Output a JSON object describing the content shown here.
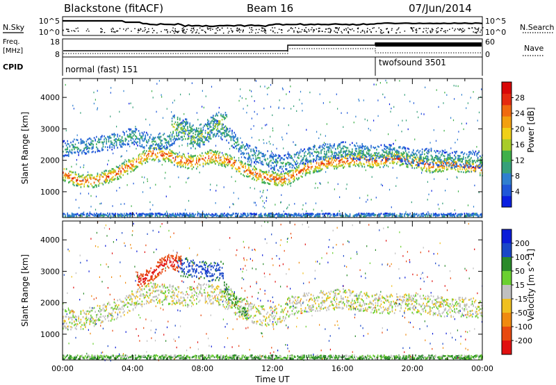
{
  "header": {
    "radar": "Blackstone (fitACF)",
    "beam": "Beam 16",
    "date": "07/Jun/2014"
  },
  "left_labels": {
    "nsky": "N.Sky",
    "freq": "Freq.",
    "freq_unit": "[MHz]",
    "cpid": "CPID"
  },
  "right_labels": {
    "nsearch": "N.Search",
    "nave": "Nave"
  },
  "nsky_ticks": [
    "10^5",
    "10^0"
  ],
  "nsearch_ticks": [
    "10^5",
    "10^0"
  ],
  "freq_ticks": [
    "18",
    "8"
  ],
  "nave_ticks": [
    "60",
    "0"
  ],
  "cpid_modes": [
    {
      "label": "normal (fast) 151",
      "start_hour": 0
    },
    {
      "label": "twofsound 3501",
      "start_hour": 18
    }
  ],
  "chart_data": [
    {
      "type": "heatmap",
      "name": "power",
      "ylabel": "Slant Range [km]",
      "xlabel": "",
      "xlim": [
        0,
        24
      ],
      "ylim": [
        180,
        4600
      ],
      "yticks": [
        1000,
        2000,
        3000,
        4000
      ],
      "colorbar": {
        "label": "Power [dB]",
        "ticks": [
          "4",
          "8",
          "12",
          "16",
          "20",
          "24",
          "28"
        ],
        "range": [
          0,
          32
        ],
        "colors": [
          "#0a1fe0",
          "#1f57d8",
          "#2f7fcf",
          "#36a07a",
          "#3fb04a",
          "#a8cc2a",
          "#f0d018",
          "#f2a010",
          "#f06a10",
          "#e52a10",
          "#d80808"
        ]
      },
      "bands": [
        {
          "desc": "main band",
          "points": [
            [
              0.0,
              1600
            ],
            [
              1.0,
              1350
            ],
            [
              2.0,
              1400
            ],
            [
              3.0,
              1600
            ],
            [
              4.0,
              1900
            ],
            [
              5.0,
              2250
            ],
            [
              6.0,
              2200
            ],
            [
              6.5,
              2050
            ],
            [
              7.5,
              1950
            ],
            [
              8.5,
              2150
            ],
            [
              9.5,
              2000
            ],
            [
              10.5,
              1700
            ],
            [
              11.5,
              1500
            ],
            [
              12.5,
              1400
            ],
            [
              13.0,
              1500
            ],
            [
              14.0,
              1800
            ],
            [
              15.0,
              1950
            ],
            [
              16.0,
              2000
            ],
            [
              17.0,
              2050
            ],
            [
              18.0,
              2000
            ],
            [
              19.0,
              2100
            ],
            [
              20.0,
              2000
            ],
            [
              21.0,
              1850
            ],
            [
              22.0,
              1900
            ],
            [
              23.0,
              1850
            ],
            [
              24.0,
              1750
            ]
          ],
          "width": 220,
          "power": 27
        },
        {
          "desc": "upper band",
          "points": [
            [
              0.0,
              2400
            ],
            [
              1.0,
              2450
            ],
            [
              2.0,
              2550
            ],
            [
              3.0,
              2650
            ],
            [
              4.0,
              2800
            ],
            [
              5.0,
              2600
            ],
            [
              6.0,
              2650
            ],
            [
              7.0,
              3100
            ],
            [
              7.8,
              2700
            ],
            [
              8.5,
              3150
            ],
            [
              9.5,
              2800
            ],
            [
              10.5,
              2300
            ],
            [
              11.5,
              2100
            ],
            [
              12.5,
              1900
            ],
            [
              13.0,
              2000
            ],
            [
              14.0,
              2200
            ],
            [
              15.0,
              2300
            ],
            [
              16.0,
              2350
            ],
            [
              17.0,
              2300
            ],
            [
              18.0,
              2250
            ],
            [
              19.0,
              2300
            ],
            [
              20.0,
              2100
            ],
            [
              21.0,
              2150
            ],
            [
              22.0,
              2050
            ],
            [
              24.0,
              2050
            ]
          ],
          "width": 260,
          "power": 11
        },
        {
          "desc": "blob",
          "points": [
            [
              6.2,
              3150
            ],
            [
              6.8,
              3000
            ],
            [
              7.5,
              2700
            ],
            [
              8.3,
              2950
            ],
            [
              8.9,
              3250
            ],
            [
              9.4,
              3150
            ]
          ],
          "width": 380,
          "power": 17
        },
        {
          "desc": "near range",
          "points": [
            [
              0.0,
              250
            ],
            [
              24.0,
              250
            ]
          ],
          "width": 90,
          "power": 9
        }
      ]
    },
    {
      "type": "heatmap",
      "name": "velocity",
      "ylabel": "Slant Range [km]",
      "xlabel": "Time UT",
      "xlim": [
        0,
        24
      ],
      "ylim": [
        180,
        4600
      ],
      "yticks": [
        1000,
        2000,
        3000,
        4000
      ],
      "xticks": [
        "00:00",
        "04:00",
        "08:00",
        "12:00",
        "16:00",
        "20:00",
        "00:00"
      ],
      "colorbar": {
        "label": "Velocity [m s^-1]",
        "ticks": [
          "200",
          "100",
          "50",
          "15",
          "-15",
          "-50",
          "-100",
          "-200"
        ],
        "colors": [
          "#0b1bd8",
          "#1a47c8",
          "#2a8a2a",
          "#6ad030",
          "#c0c0c0",
          "#f0c020",
          "#f08a10",
          "#e84a10",
          "#e01010"
        ]
      },
      "bands": [
        {
          "desc": "ground scatter",
          "points": [
            [
              0.0,
              1500
            ],
            [
              1.0,
              1450
            ],
            [
              2.0,
              1650
            ],
            [
              3.0,
              1800
            ],
            [
              4.0,
              2100
            ],
            [
              5.0,
              2350
            ],
            [
              6.0,
              2300
            ],
            [
              7.0,
              2200
            ],
            [
              8.0,
              2350
            ],
            [
              9.0,
              2250
            ],
            [
              10.0,
              1900
            ],
            [
              11.0,
              1650
            ],
            [
              12.0,
              1550
            ],
            [
              13.0,
              1900
            ],
            [
              14.0,
              2050
            ],
            [
              16.0,
              2150
            ],
            [
              18.0,
              2000
            ],
            [
              20.0,
              2000
            ],
            [
              22.0,
              1900
            ],
            [
              24.0,
              1850
            ]
          ],
          "width": 320,
          "velocity": 0
        },
        {
          "desc": "positive blob",
          "points": [
            [
              6.5,
              3200
            ],
            [
              7.5,
              3100
            ],
            [
              8.5,
              3000
            ],
            [
              9.2,
              3050
            ]
          ],
          "width": 300,
          "velocity": 150
        },
        {
          "desc": "negative blob",
          "points": [
            [
              4.2,
              2850
            ],
            [
              4.5,
              2700
            ],
            [
              6.0,
              3350
            ],
            [
              6.8,
              3250
            ]
          ],
          "width": 250,
          "velocity": -200
        },
        {
          "desc": "descending feature",
          "points": [
            [
              9.2,
              2500
            ],
            [
              10.0,
              2000
            ],
            [
              10.6,
              1600
            ]
          ],
          "width": 220,
          "velocity": 40
        },
        {
          "desc": "near range",
          "points": [
            [
              0.0,
              260
            ],
            [
              4.0,
              260
            ],
            [
              10.0,
              260
            ],
            [
              14.0,
              260
            ],
            [
              18.0,
              260
            ],
            [
              24.0,
              260
            ]
          ],
          "width": 100,
          "velocity": 45
        }
      ]
    }
  ],
  "colors": {
    "axis": "#000000",
    "background": "#ffffff"
  }
}
